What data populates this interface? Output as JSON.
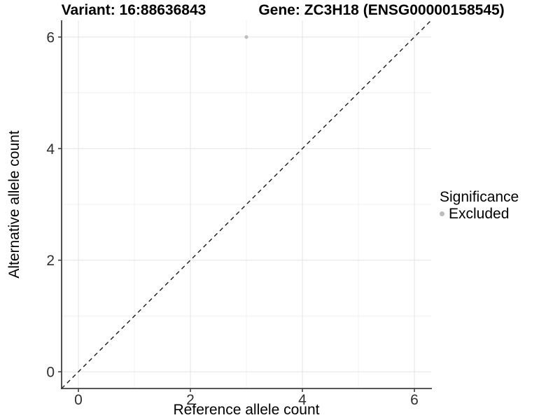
{
  "titles": {
    "variant": "Variant: 16:88636843",
    "gene": "Gene: ZC3H18 (ENSG00000158545)"
  },
  "axes": {
    "x_label": "Reference allele count",
    "y_label": "Alternative allele count"
  },
  "legend": {
    "title": "Significance",
    "items": [
      {
        "label": "Excluded",
        "color": "#bdbdbd"
      }
    ]
  },
  "colors": {
    "background": "#ffffff",
    "axis_line": "#404040",
    "tick_label": "#303030",
    "grid_major": "#e4e4e4",
    "grid_minor": "#f0f0f0",
    "identity_line": "#1a1a1a",
    "point": "#bdbdbd"
  },
  "chart_data": {
    "type": "scatter",
    "title": "Variant: 16:88636843   Gene: ZC3H18 (ENSG00000158545)",
    "xlabel": "Reference allele count",
    "ylabel": "Alternative allele count",
    "xlim": [
      -0.3,
      6.3
    ],
    "ylim": [
      -0.3,
      6.3
    ],
    "x_ticks": [
      0,
      2,
      4,
      6
    ],
    "y_ticks": [
      0,
      2,
      4,
      6
    ],
    "x_minor": [
      1,
      3,
      5
    ],
    "y_minor": [
      1,
      3,
      5
    ],
    "grid": true,
    "legend_position": "right",
    "legend_title": "Significance",
    "series": [
      {
        "name": "Excluded",
        "color": "#bdbdbd",
        "points": [
          {
            "x": 3,
            "y": 6
          }
        ]
      }
    ],
    "reference_line": {
      "type": "identity y=x",
      "style": "dashed",
      "from": [
        -0.3,
        -0.3
      ],
      "to": [
        6.3,
        6.3
      ]
    }
  }
}
